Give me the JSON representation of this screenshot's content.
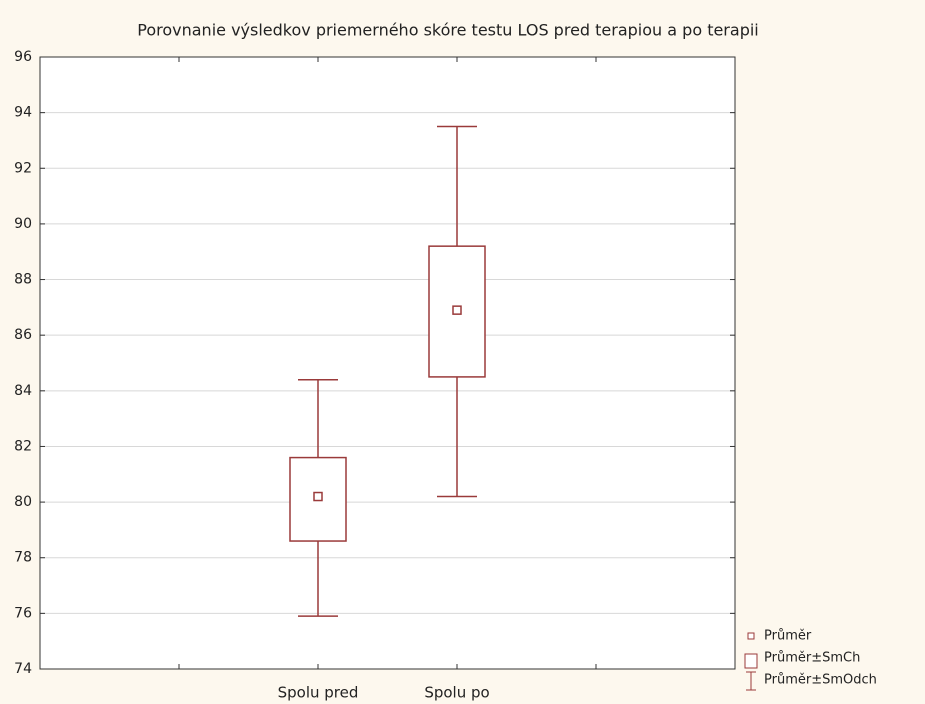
{
  "chart_data": {
    "type": "box",
    "title": "Porovnanie výsledkov priemerného skóre testu LOS pred terapiou a po terapii",
    "categories": [
      "Spolu pred",
      "Spolu po"
    ],
    "mean": [
      80.2,
      86.9
    ],
    "box_low": [
      78.6,
      84.5
    ],
    "box_high": [
      81.6,
      89.2
    ],
    "whisker_low": [
      75.9,
      80.2
    ],
    "whisker_high": [
      84.4,
      93.5
    ],
    "color": "#9a3a3a",
    "legend": [
      "Průměr",
      "Průměr±SmCh",
      "Průměr±SmOdch"
    ],
    "legend_position": "bottom-right",
    "ylim": [
      74,
      96
    ],
    "yticks": [
      74,
      76,
      78,
      80,
      82,
      84,
      86,
      88,
      90,
      92,
      94,
      96
    ],
    "grid": true
  }
}
